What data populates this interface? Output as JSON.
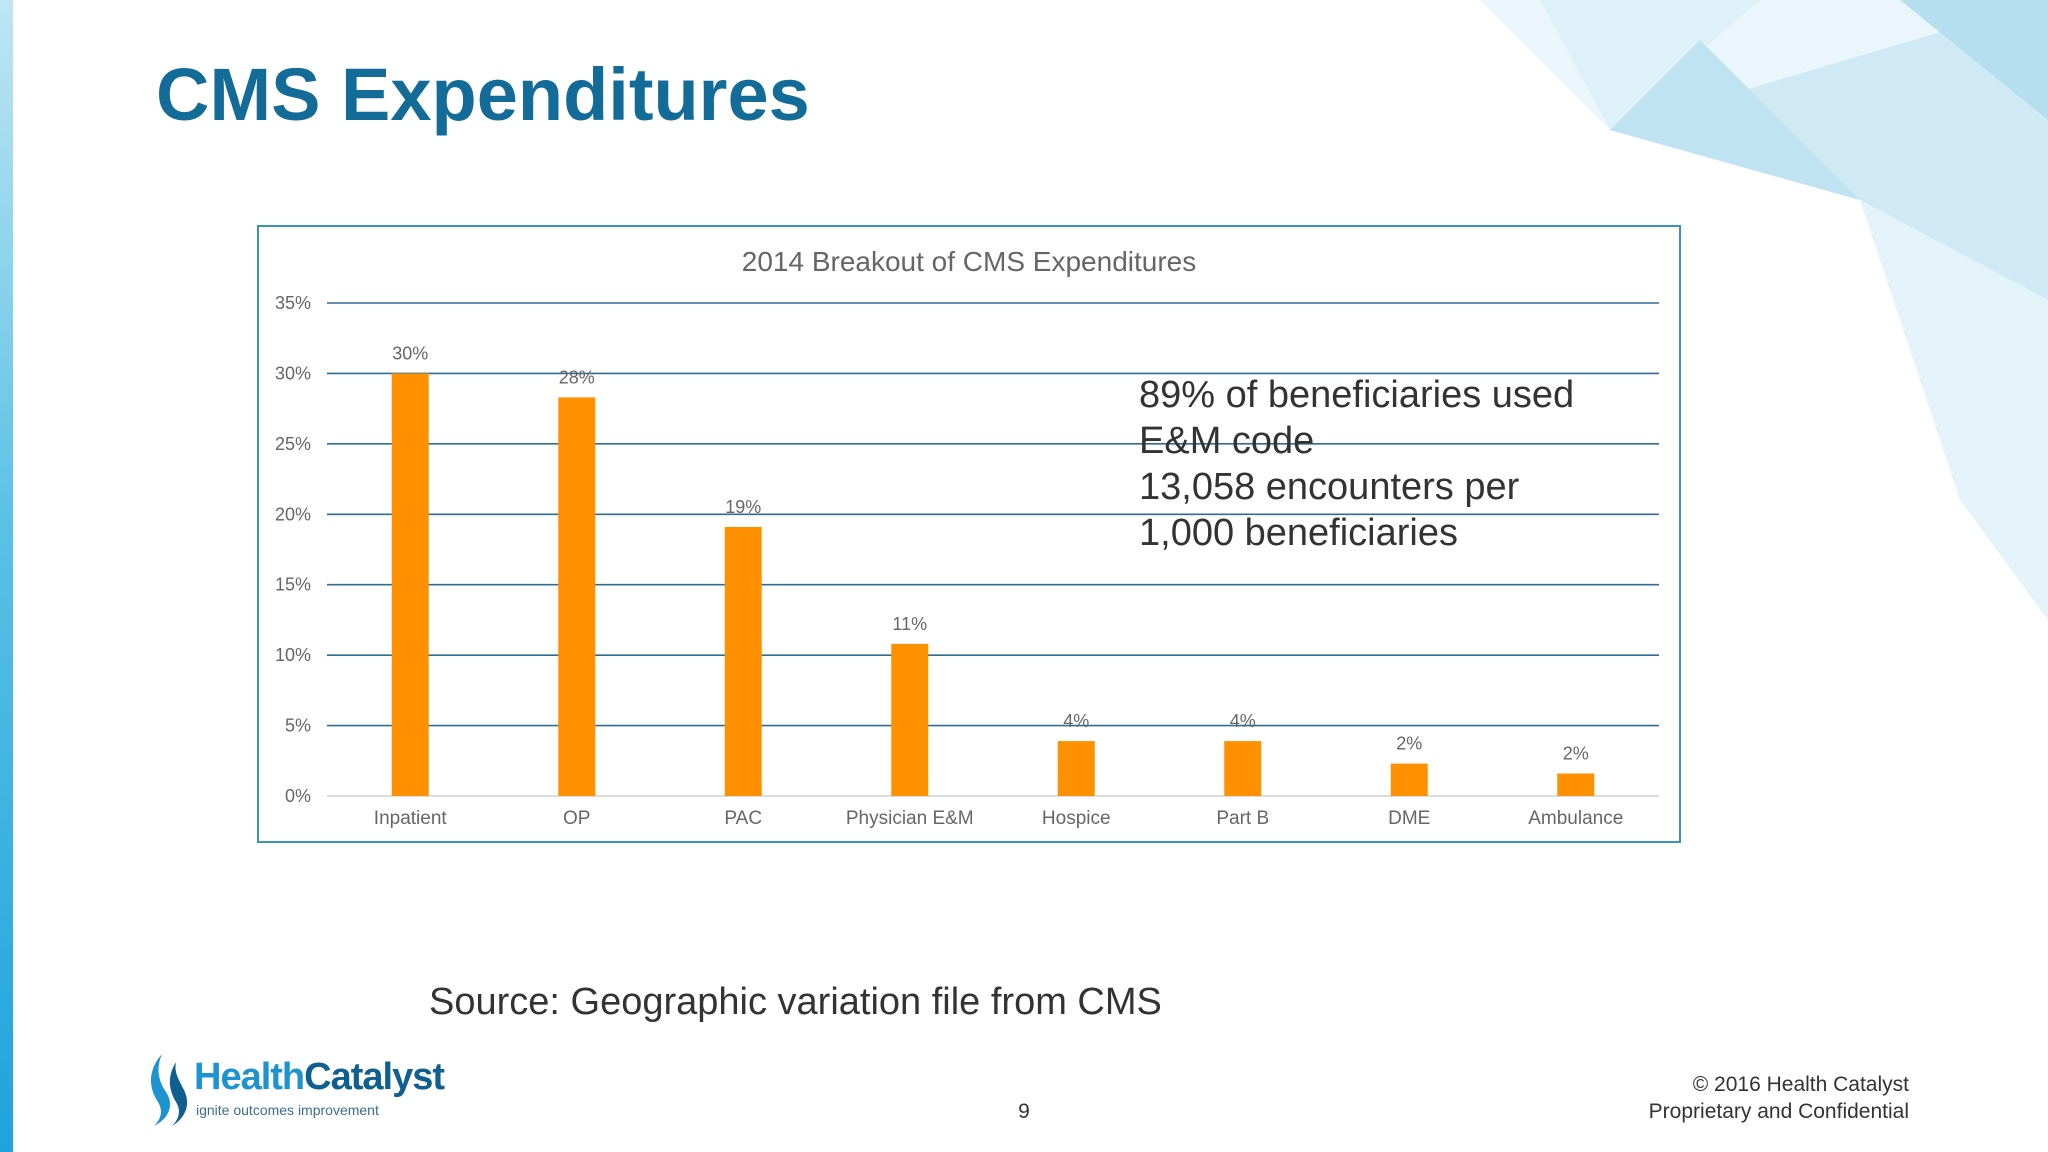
{
  "slide": {
    "title": "CMS Expenditures",
    "callout_lines": [
      "89% of beneficiaries used",
      "E&M code",
      "13,058 encounters per",
      "1,000 beneficiaries"
    ],
    "source": "Source: Geographic variation file from CMS",
    "page_number": "9",
    "copyright_lines": [
      "© 2016 Health Catalyst",
      "Proprietary and Confidential"
    ],
    "logo": {
      "name_part1": "Health",
      "name_part2": "Catalyst",
      "tagline": "ignite outcomes improvement",
      "icon": "flame-logo-icon"
    },
    "colors": {
      "title": "#136c98",
      "bar": "#ff9100",
      "gridline": "#2f6d92",
      "frame": "#3b92b8"
    }
  },
  "chart_data": {
    "type": "bar",
    "title": "2014 Breakout of CMS Expenditures",
    "categories": [
      "Inpatient",
      "OP",
      "PAC",
      "Physician E&M",
      "Hospice",
      "Part B",
      "DME",
      "Ambulance"
    ],
    "values": [
      30,
      28.3,
      19.1,
      10.8,
      3.9,
      3.9,
      2.3,
      1.6
    ],
    "data_labels": [
      "30%",
      "28%",
      "19%",
      "11%",
      "4%",
      "4%",
      "2%",
      "2%"
    ],
    "y_ticks": [
      0,
      5,
      10,
      15,
      20,
      25,
      30,
      35
    ],
    "y_tick_labels": [
      "0%",
      "5%",
      "10%",
      "15%",
      "20%",
      "25%",
      "30%",
      "35%"
    ],
    "ylim": [
      0,
      35
    ],
    "xlabel": "",
    "ylabel": "",
    "grid": true,
    "legend": "none"
  }
}
